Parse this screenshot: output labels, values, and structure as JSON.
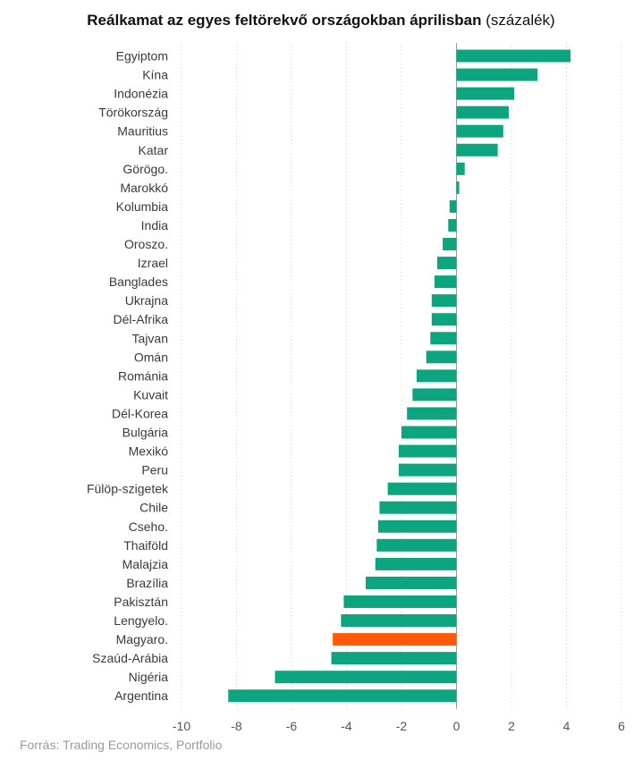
{
  "title": {
    "main": "Reálkamat az egyes feltörekvő országokban áprilisban",
    "unit": "(százalék)"
  },
  "source": "Forrás: Trading Economics, Portfolio",
  "colors": {
    "bar": "#0ca57f",
    "highlight": "#ff5a0a",
    "grid": "#d0d0d0",
    "axis": "#999999"
  },
  "chart_data": {
    "type": "bar",
    "orientation": "horizontal",
    "categories": [
      "Egyiptom",
      "Kína",
      "Indonézia",
      "Törökország",
      "Mauritius",
      "Katar",
      "Görögo.",
      "Marokkó",
      "Kolumbia",
      "India",
      "Oroszo.",
      "Izrael",
      "Banglades",
      "Ukrajna",
      "Dél-Afrika",
      "Tajvan",
      "Omán",
      "Románia",
      "Kuvait",
      "Dél-Korea",
      "Bulgária",
      "Mexikó",
      "Peru",
      "Fülöp-szigetek",
      "Chile",
      "Cseho.",
      "Thaiföld",
      "Malajzia",
      "Brazília",
      "Pakisztán",
      "Lengyelo.",
      "Magyaro.",
      "Szaúd-Arábia",
      "Nigéria",
      "Argentina"
    ],
    "values": [
      4.15,
      2.95,
      2.1,
      1.9,
      1.7,
      1.5,
      0.3,
      0.1,
      -0.25,
      -0.3,
      -0.5,
      -0.7,
      -0.8,
      -0.9,
      -0.9,
      -0.95,
      -1.1,
      -1.45,
      -1.6,
      -1.8,
      -2.0,
      -2.1,
      -2.1,
      -2.5,
      -2.8,
      -2.85,
      -2.9,
      -2.95,
      -3.3,
      -4.1,
      -4.2,
      -4.5,
      -4.55,
      -6.6,
      -8.3
    ],
    "highlight_category": "Magyaro.",
    "xticks": [
      -10,
      -8,
      -6,
      -4,
      -2,
      0,
      2,
      4,
      6
    ],
    "xlim": [
      -10,
      6
    ],
    "grid": true,
    "legend": false
  }
}
